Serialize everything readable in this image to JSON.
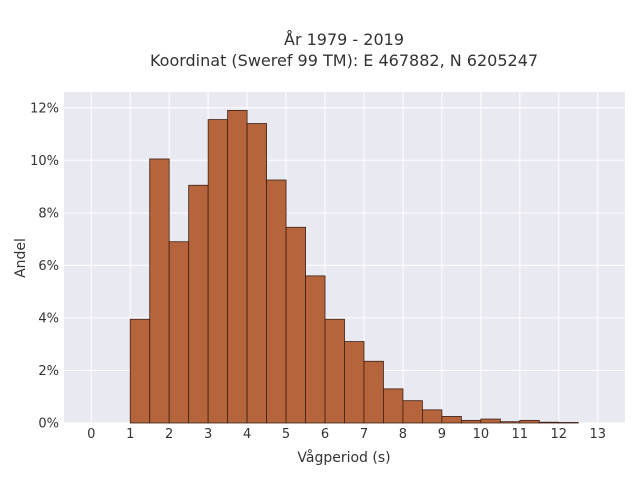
{
  "chart_data": {
    "type": "bar",
    "title_line1": "År 1979 - 2019",
    "title_line2": "Koordinat (Sweref 99 TM): E 467882, N 6205247",
    "xlabel": "Vågperiod (s)",
    "ylabel": "Andel",
    "xlim": [
      -0.7,
      13.7
    ],
    "ylim": [
      0,
      12.6
    ],
    "x_ticks": [
      "0",
      "1",
      "2",
      "3",
      "4",
      "5",
      "6",
      "7",
      "8",
      "9",
      "10",
      "11",
      "12",
      "13"
    ],
    "y_ticks": [
      "0%",
      "2%",
      "4%",
      "6%",
      "8%",
      "10%",
      "12%"
    ],
    "bin_width": 0.5,
    "bins": [
      {
        "x0": 1.0,
        "value": 3.95
      },
      {
        "x0": 1.5,
        "value": 10.05
      },
      {
        "x0": 2.0,
        "value": 6.9
      },
      {
        "x0": 2.5,
        "value": 9.05
      },
      {
        "x0": 3.0,
        "value": 11.55
      },
      {
        "x0": 3.5,
        "value": 11.9
      },
      {
        "x0": 4.0,
        "value": 11.4
      },
      {
        "x0": 4.5,
        "value": 9.25
      },
      {
        "x0": 5.0,
        "value": 7.45
      },
      {
        "x0": 5.5,
        "value": 5.6
      },
      {
        "x0": 6.0,
        "value": 3.95
      },
      {
        "x0": 6.5,
        "value": 3.1
      },
      {
        "x0": 7.0,
        "value": 2.35
      },
      {
        "x0": 7.5,
        "value": 1.3
      },
      {
        "x0": 8.0,
        "value": 0.85
      },
      {
        "x0": 8.5,
        "value": 0.5
      },
      {
        "x0": 9.0,
        "value": 0.25
      },
      {
        "x0": 9.5,
        "value": 0.1
      },
      {
        "x0": 10.0,
        "value": 0.15
      },
      {
        "x0": 10.5,
        "value": 0.05
      },
      {
        "x0": 11.0,
        "value": 0.1
      },
      {
        "x0": 11.5,
        "value": 0.03
      },
      {
        "x0": 12.0,
        "value": 0.02
      }
    ],
    "grid": true,
    "bar_color": "#b5643b",
    "bar_edge_color": "#3d2014",
    "plot_bg": "#e9e9f1"
  }
}
